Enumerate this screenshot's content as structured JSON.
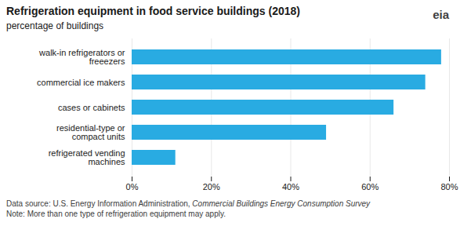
{
  "chart_data": {
    "type": "bar",
    "orientation": "horizontal",
    "title": "Refrigeration equipment in food service buildings (2018)",
    "subtitle": "percentage of buildings",
    "categories": [
      "refrigerated vending\nmachines",
      "residential-type or\ncompact units",
      "cases or cabinets",
      "commercial ice makers",
      "walk-in refrigerators or\nfreeezers"
    ],
    "values": [
      11,
      49,
      66,
      74,
      78
    ],
    "color": "#29abe2",
    "xlim": [
      0,
      80
    ],
    "xticks": [
      {
        "value": 0,
        "label": "0%"
      },
      {
        "value": 20,
        "label": "20%"
      },
      {
        "value": 40,
        "label": "40%"
      },
      {
        "value": 60,
        "label": "60%"
      },
      {
        "value": 80,
        "label": "80%"
      }
    ],
    "grid": true,
    "source": "Data source: U.S. Energy Information Administration, ",
    "source_title": "Commercial Buildings Energy Consumption Survey",
    "note": "Note: More than one type of refrigeration equipment may apply.",
    "annotations": [
      "eia"
    ]
  }
}
